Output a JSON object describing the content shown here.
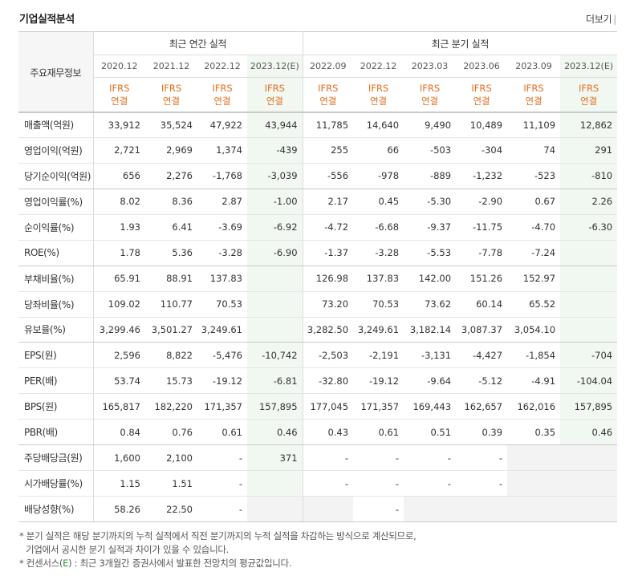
{
  "title": "기업실적분석",
  "more_link": "더보기",
  "corner_label": "주요재무정보",
  "annual_group": "최근 연간 실적",
  "quarter_group": "최근 분기 실적",
  "periods": [
    "2020.12",
    "2021.12",
    "2022.12",
    "2023.12(E)",
    "2022.09",
    "2022.12",
    "2023.03",
    "2023.06",
    "2023.09",
    "2023.12(E)"
  ],
  "ifrs_line1": "IFRS",
  "ifrs_line2": "연결",
  "rows": [
    {
      "label": "매출액(억원)",
      "values": [
        "33,912",
        "35,524",
        "47,922",
        "43,944",
        "11,785",
        "14,640",
        "9,490",
        "10,489",
        "11,109",
        "12,862"
      ]
    },
    {
      "label": "영업이익(억원)",
      "values": [
        "2,721",
        "2,969",
        "1,374",
        "-439",
        "255",
        "66",
        "-503",
        "-304",
        "74",
        "291"
      ]
    },
    {
      "label": "당기순이익(억원)",
      "values": [
        "656",
        "2,276",
        "-1,768",
        "-3,039",
        "-556",
        "-978",
        "-889",
        "-1,232",
        "-523",
        "-810"
      ]
    },
    {
      "label": "영업이익률(%)",
      "values": [
        "8.02",
        "8.36",
        "2.87",
        "-1.00",
        "2.17",
        "0.45",
        "-5.30",
        "-2.90",
        "0.67",
        "2.26"
      ]
    },
    {
      "label": "순이익률(%)",
      "values": [
        "1.93",
        "6.41",
        "-3.69",
        "-6.92",
        "-4.72",
        "-6.68",
        "-9.37",
        "-11.75",
        "-4.70",
        "-6.30"
      ]
    },
    {
      "label": "ROE(%)",
      "values": [
        "1.78",
        "5.36",
        "-3.28",
        "-6.90",
        "-1.37",
        "-3.28",
        "-5.53",
        "-7.78",
        "-7.24",
        ""
      ]
    },
    {
      "label": "부채비율(%)",
      "values": [
        "65.91",
        "88.91",
        "137.83",
        "",
        "126.98",
        "137.83",
        "142.00",
        "151.26",
        "152.97",
        ""
      ]
    },
    {
      "label": "당좌비율(%)",
      "values": [
        "109.02",
        "110.77",
        "70.53",
        "",
        "73.20",
        "70.53",
        "73.62",
        "60.14",
        "65.52",
        ""
      ]
    },
    {
      "label": "유보율(%)",
      "values": [
        "3,299.46",
        "3,501.27",
        "3,249.61",
        "",
        "3,282.50",
        "3,249.61",
        "3,182.14",
        "3,087.37",
        "3,054.10",
        ""
      ]
    },
    {
      "label": "EPS(원)",
      "values": [
        "2,596",
        "8,822",
        "-5,476",
        "-10,742",
        "-2,503",
        "-2,191",
        "-3,131",
        "-4,427",
        "-1,854",
        "-704"
      ]
    },
    {
      "label": "PER(배)",
      "values": [
        "53.74",
        "15.73",
        "-19.12",
        "-6.81",
        "-32.80",
        "-19.12",
        "-9.64",
        "-5.12",
        "-4.91",
        "-104.04"
      ]
    },
    {
      "label": "BPS(원)",
      "values": [
        "165,817",
        "182,220",
        "171,357",
        "157,895",
        "177,045",
        "171,357",
        "169,443",
        "162,657",
        "162,016",
        "157,895"
      ]
    },
    {
      "label": "PBR(배)",
      "values": [
        "0.84",
        "0.76",
        "0.61",
        "0.46",
        "0.43",
        "0.61",
        "0.51",
        "0.39",
        "0.35",
        "0.46"
      ]
    },
    {
      "label": "주당배당금(원)",
      "values": [
        "1,600",
        "2,100",
        "-",
        "371",
        "-",
        "-",
        "-",
        "-",
        "",
        ""
      ]
    },
    {
      "label": "시가배당률(%)",
      "values": [
        "1.15",
        "1.51",
        "-",
        "",
        "-",
        "-",
        "-",
        "-",
        "",
        ""
      ]
    },
    {
      "label": "배당성향(%)",
      "values": [
        "58.26",
        "22.50",
        "-",
        "",
        "",
        "-",
        "",
        "",
        "",
        ""
      ]
    }
  ],
  "notes": {
    "line1": "* 분기 실적은 해당 분기까지의 누적 실적에서 직전 분기까지의 누적 실적을 차감하는 방식으로 계산되므로,",
    "line2": "기업에서 공시한 분기 실적과 차이가 있을 수 있습니다.",
    "line3_pre": "* 컨센서스(",
    "line3_e": "E",
    "line3_post": ") : 최근 3개월간 증권사에서 발표한 전망치의 평균값입니다."
  },
  "colors": {
    "negative": "#e02020",
    "ifrs": "#e76d1c",
    "estimate_bg": "#f1f8f1",
    "na_bg": "#f3f3f3"
  }
}
